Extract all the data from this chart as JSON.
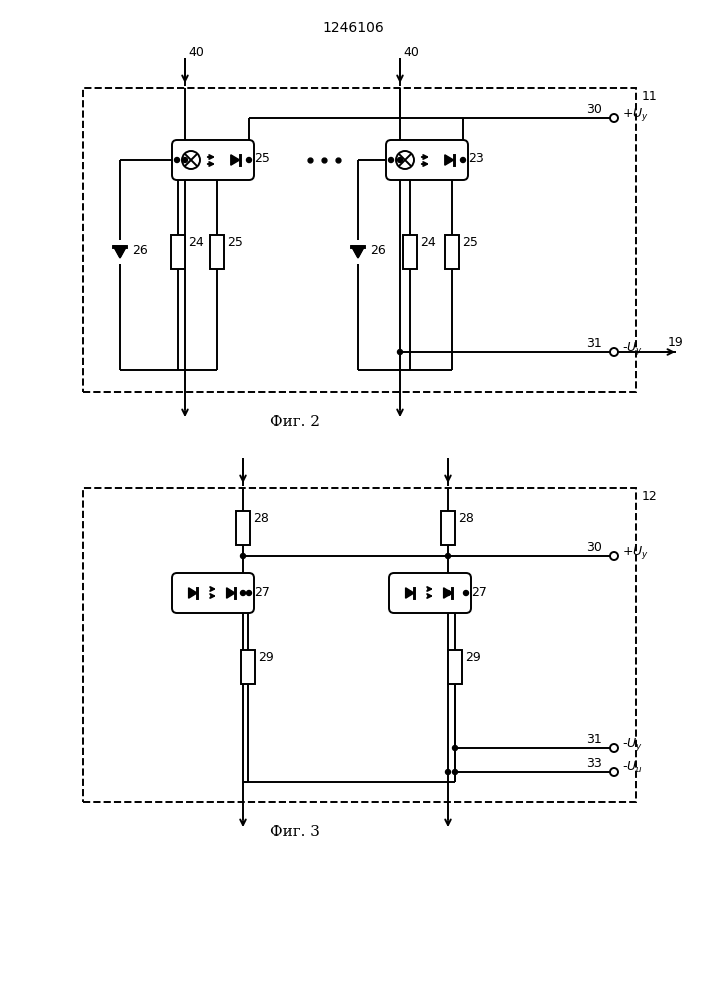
{
  "title": "1246106",
  "fig2_label": "Фиг. 2",
  "fig3_label": "Фиг. 3",
  "bg_color": "#ffffff",
  "lc": "#000000",
  "lw": 1.4
}
